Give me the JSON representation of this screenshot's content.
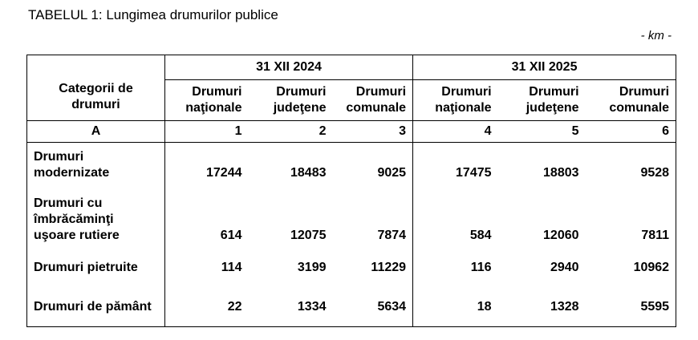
{
  "title": "TABELUL 1: Lungimea drumurilor publice",
  "unit": "- km -",
  "header": {
    "category_label": "Categorii de drumuri",
    "group1": "31 XII 2024",
    "group2": "31 XII 2025",
    "sub": [
      "Drumuri naţionale",
      "Drumuri judeţene",
      "Drumuri comunale",
      "Drumuri naţionale",
      "Drumuri judeţene",
      "Drumuri comunale"
    ],
    "index": [
      "A",
      "1",
      "2",
      "3",
      "4",
      "5",
      "6"
    ]
  },
  "rows": [
    {
      "label": "Drumuri modernizate",
      "values": [
        "17244",
        "18483",
        "9025",
        "17475",
        "18803",
        "9528"
      ]
    },
    {
      "label": "Drumuri cu îmbrăcăminţi uşoare rutiere",
      "values": [
        "614",
        "12075",
        "7874",
        "584",
        "12060",
        "7811"
      ]
    },
    {
      "label": "Drumuri pietruite",
      "values": [
        "114",
        "3199",
        "11229",
        "116",
        "2940",
        "10962"
      ]
    },
    {
      "label": "Drumuri de pământ",
      "values": [
        "22",
        "1334",
        "5634",
        "18",
        "1328",
        "5595"
      ]
    }
  ]
}
